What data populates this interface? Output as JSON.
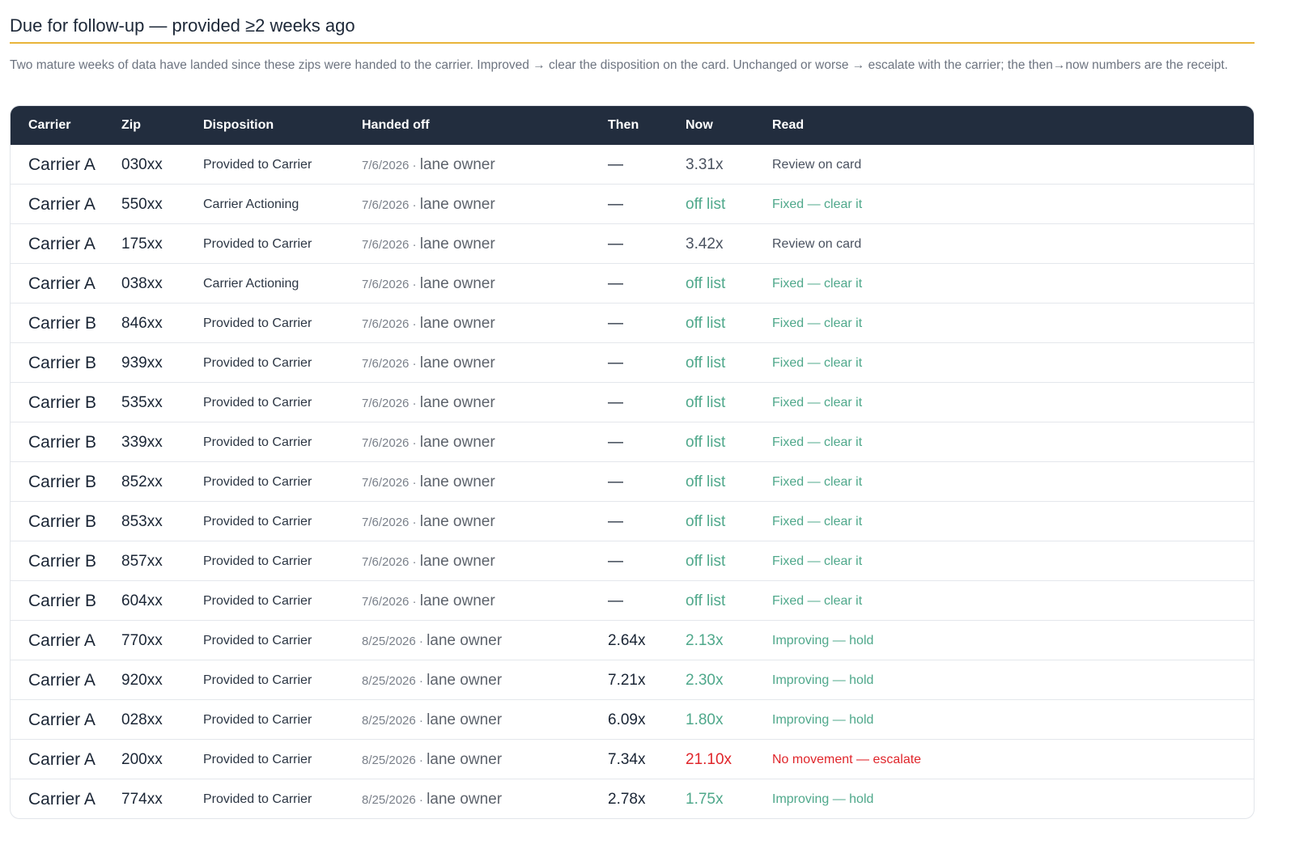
{
  "section": {
    "title": "Due for follow-up — provided ≥2 weeks ago",
    "description": "Two mature weeks of data have landed since these zips were handed to the carrier. Improved → clear the disposition on the card. Unchanged or worse → escalate with the carrier; the then→now numbers are the receipt."
  },
  "table": {
    "headers": [
      "Carrier",
      "Zip",
      "Disposition",
      "Handed off",
      "Then",
      "Now",
      "Read"
    ],
    "rows": [
      {
        "carrier": "Carrier A",
        "zip": "030xx",
        "disposition": "Provided to Carrier",
        "date": "7/6/2026 ·",
        "owner": "lane owner",
        "then": "—",
        "now": "3.31x",
        "read": "Review on card",
        "status": "neutral"
      },
      {
        "carrier": "Carrier A",
        "zip": "550xx",
        "disposition": "Carrier Actioning",
        "date": "7/6/2026 ·",
        "owner": "lane owner",
        "then": "—",
        "now": "off list",
        "read": "Fixed — clear it",
        "status": "good"
      },
      {
        "carrier": "Carrier A",
        "zip": "175xx",
        "disposition": "Provided to Carrier",
        "date": "7/6/2026 ·",
        "owner": "lane owner",
        "then": "—",
        "now": "3.42x",
        "read": "Review on card",
        "status": "neutral"
      },
      {
        "carrier": "Carrier A",
        "zip": "038xx",
        "disposition": "Carrier Actioning",
        "date": "7/6/2026 ·",
        "owner": "lane owner",
        "then": "—",
        "now": "off list",
        "read": "Fixed — clear it",
        "status": "good"
      },
      {
        "carrier": "Carrier B",
        "zip": "846xx",
        "disposition": "Provided to Carrier",
        "date": "7/6/2026 ·",
        "owner": "lane owner",
        "then": "—",
        "now": "off list",
        "read": "Fixed — clear it",
        "status": "good"
      },
      {
        "carrier": "Carrier B",
        "zip": "939xx",
        "disposition": "Provided to Carrier",
        "date": "7/6/2026 ·",
        "owner": "lane owner",
        "then": "—",
        "now": "off list",
        "read": "Fixed — clear it",
        "status": "good"
      },
      {
        "carrier": "Carrier B",
        "zip": "535xx",
        "disposition": "Provided to Carrier",
        "date": "7/6/2026 ·",
        "owner": "lane owner",
        "then": "—",
        "now": "off list",
        "read": "Fixed — clear it",
        "status": "good"
      },
      {
        "carrier": "Carrier B",
        "zip": "339xx",
        "disposition": "Provided to Carrier",
        "date": "7/6/2026 ·",
        "owner": "lane owner",
        "then": "—",
        "now": "off list",
        "read": "Fixed — clear it",
        "status": "good"
      },
      {
        "carrier": "Carrier B",
        "zip": "852xx",
        "disposition": "Provided to Carrier",
        "date": "7/6/2026 ·",
        "owner": "lane owner",
        "then": "—",
        "now": "off list",
        "read": "Fixed — clear it",
        "status": "good"
      },
      {
        "carrier": "Carrier B",
        "zip": "853xx",
        "disposition": "Provided to Carrier",
        "date": "7/6/2026 ·",
        "owner": "lane owner",
        "then": "—",
        "now": "off list",
        "read": "Fixed — clear it",
        "status": "good"
      },
      {
        "carrier": "Carrier B",
        "zip": "857xx",
        "disposition": "Provided to Carrier",
        "date": "7/6/2026 ·",
        "owner": "lane owner",
        "then": "—",
        "now": "off list",
        "read": "Fixed — clear it",
        "status": "good"
      },
      {
        "carrier": "Carrier B",
        "zip": "604xx",
        "disposition": "Provided to Carrier",
        "date": "7/6/2026 ·",
        "owner": "lane owner",
        "then": "—",
        "now": "off list",
        "read": "Fixed — clear it",
        "status": "good"
      },
      {
        "carrier": "Carrier A",
        "zip": "770xx",
        "disposition": "Provided to Carrier",
        "date": "8/25/2026 ·",
        "owner": "lane owner",
        "then": "2.64x",
        "now": "2.13x",
        "read": "Improving — hold",
        "status": "good"
      },
      {
        "carrier": "Carrier A",
        "zip": "920xx",
        "disposition": "Provided to Carrier",
        "date": "8/25/2026 ·",
        "owner": "lane owner",
        "then": "7.21x",
        "now": "2.30x",
        "read": "Improving — hold",
        "status": "good"
      },
      {
        "carrier": "Carrier A",
        "zip": "028xx",
        "disposition": "Provided to Carrier",
        "date": "8/25/2026 ·",
        "owner": "lane owner",
        "then": "6.09x",
        "now": "1.80x",
        "read": "Improving — hold",
        "status": "good"
      },
      {
        "carrier": "Carrier A",
        "zip": "200xx",
        "disposition": "Provided to Carrier",
        "date": "8/25/2026 ·",
        "owner": "lane owner",
        "then": "7.34x",
        "now": "21.10x",
        "read": "No movement — escalate",
        "status": "bad"
      },
      {
        "carrier": "Carrier A",
        "zip": "774xx",
        "disposition": "Provided to Carrier",
        "date": "8/25/2026 ·",
        "owner": "lane owner",
        "then": "2.78x",
        "now": "1.75x",
        "read": "Improving — hold",
        "status": "good"
      }
    ]
  },
  "colors": {
    "header_bg": "#222d3e",
    "title_underline": "#e8b43a",
    "good": "#4fa88b",
    "bad": "#e0262b",
    "neutral": "#4a5260"
  }
}
